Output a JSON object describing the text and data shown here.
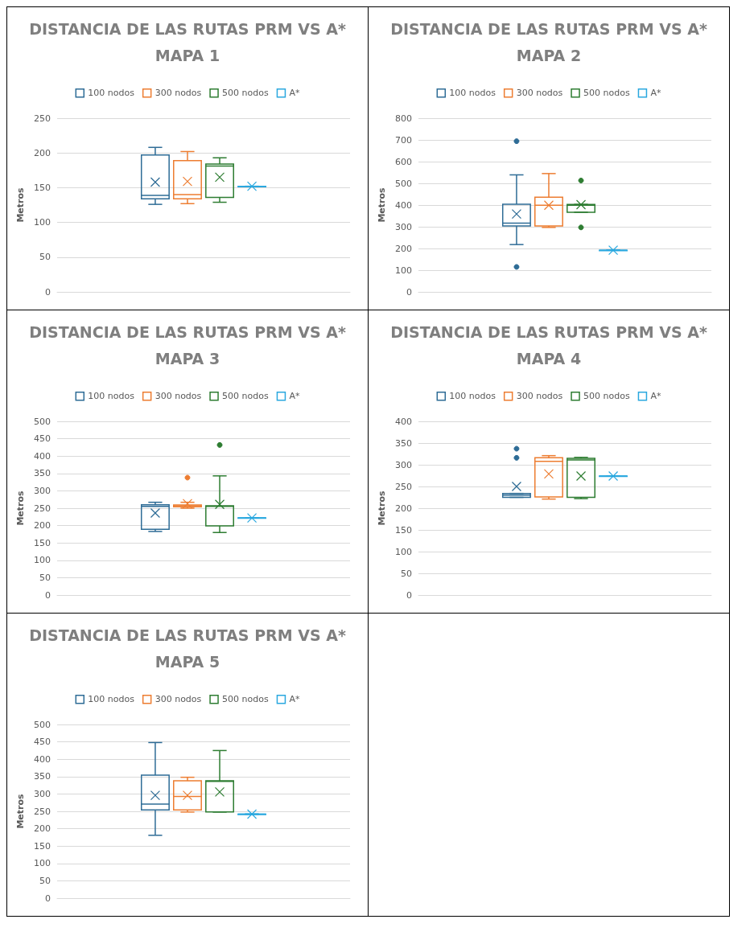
{
  "chart_data": [
    {
      "type": "box",
      "title": "DISTANCIA DE LAS RUTAS PRM VS A*",
      "subtitle": "MAPA 1",
      "ylabel": "Metros",
      "categories": [
        null
      ],
      "ylim": [
        0,
        250
      ],
      "yticks": [
        0,
        50,
        100,
        150,
        200,
        250
      ],
      "grid": "y",
      "legend": "top",
      "series": [
        {
          "name": "100 nodos",
          "color": "#2e6c96",
          "boxes": [
            {
              "low": 126,
              "q1": 134,
              "median": 139,
              "q3": 197,
              "high": 208,
              "mean": 158
            }
          ]
        },
        {
          "name": "300 nodos",
          "color": "#ed7d31",
          "boxes": [
            {
              "low": 127,
              "q1": 134,
              "median": 140,
              "q3": 189,
              "high": 202,
              "mean": 159
            }
          ]
        },
        {
          "name": "500 nodos",
          "color": "#2e7d32",
          "boxes": [
            {
              "low": 129,
              "q1": 136,
              "median": 181,
              "q3": 184,
              "high": 193,
              "mean": 165
            }
          ]
        },
        {
          "name": "A*",
          "color": "#2aa8df",
          "boxes": [
            {
              "low": 152,
              "q1": 152,
              "median": 152,
              "q3": 152,
              "high": 152,
              "mean": 152
            }
          ]
        }
      ]
    },
    {
      "type": "box",
      "title": "DISTANCIA DE LAS RUTAS PRM VS A*",
      "subtitle": "MAPA 2",
      "ylabel": "Metros",
      "categories": [
        null
      ],
      "ylim": [
        0,
        800
      ],
      "yticks": [
        0,
        100,
        200,
        300,
        400,
        500,
        600,
        700,
        800
      ],
      "grid": "y",
      "legend": "top",
      "series": [
        {
          "name": "100 nodos",
          "color": "#2e6c96",
          "boxes": [
            {
              "low": 218,
              "q1": 304,
              "median": 317,
              "q3": 404,
              "high": 539,
              "mean": 359,
              "outliers": [
                694,
                115
              ]
            }
          ]
        },
        {
          "name": "300 nodos",
          "color": "#ed7d31",
          "boxes": [
            {
              "low": 297,
              "q1": 304,
              "median": 399,
              "q3": 436,
              "high": 545,
              "mean": 399
            }
          ]
        },
        {
          "name": "500 nodos",
          "color": "#2e7d32",
          "boxes": [
            {
              "low": 367,
              "q1": 367,
              "median": 399,
              "q3": 403,
              "high": 403,
              "mean": 402,
              "outliers": [
                513,
                297
              ]
            }
          ]
        },
        {
          "name": "A*",
          "color": "#2aa8df",
          "boxes": [
            {
              "low": 192,
              "q1": 192,
              "median": 192,
              "q3": 192,
              "high": 192,
              "mean": 192
            }
          ]
        }
      ]
    },
    {
      "type": "box",
      "title": "DISTANCIA DE LAS RUTAS PRM VS A*",
      "subtitle": "MAPA 3",
      "ylabel": "Metros",
      "categories": [
        null
      ],
      "ylim": [
        0,
        500
      ],
      "yticks": [
        0,
        50,
        100,
        150,
        200,
        250,
        300,
        350,
        400,
        450,
        500
      ],
      "grid": "y",
      "legend": "top",
      "series": [
        {
          "name": "100 nodos",
          "color": "#2e6c96",
          "boxes": [
            {
              "low": 183,
              "q1": 189,
              "median": 255,
              "q3": 260,
              "high": 267,
              "mean": 236
            }
          ]
        },
        {
          "name": "300 nodos",
          "color": "#ed7d31",
          "boxes": [
            {
              "low": 250,
              "q1": 254,
              "median": 257,
              "q3": 259,
              "high": 267,
              "mean": 263,
              "outliers": [
                338
              ]
            }
          ]
        },
        {
          "name": "500 nodos",
          "color": "#2e7d32",
          "boxes": [
            {
              "low": 180,
              "q1": 199,
              "median": 255,
              "q3": 257,
              "high": 343,
              "mean": 261,
              "outliers": [
                432
              ]
            }
          ]
        },
        {
          "name": "A*",
          "color": "#2aa8df",
          "boxes": [
            {
              "low": 222,
              "q1": 222,
              "median": 222,
              "q3": 222,
              "high": 222,
              "mean": 222
            }
          ]
        }
      ]
    },
    {
      "type": "box",
      "title": "DISTANCIA DE LAS RUTAS PRM VS A*",
      "subtitle": "MAPA 4",
      "ylabel": "Metros",
      "categories": [
        null
      ],
      "ylim": [
        0,
        400
      ],
      "yticks": [
        0,
        50,
        100,
        150,
        200,
        250,
        300,
        350,
        400
      ],
      "grid": "y",
      "legend": "top",
      "series": [
        {
          "name": "100 nodos",
          "color": "#2e6c96",
          "boxes": [
            {
              "low": 225,
              "q1": 225,
              "median": 230,
              "q3": 234,
              "high": 234,
              "mean": 250,
              "outliers": [
                337,
                316
              ]
            }
          ]
        },
        {
          "name": "300 nodos",
          "color": "#ed7d31",
          "boxes": [
            {
              "low": 221,
              "q1": 226,
              "median": 308,
              "q3": 316,
              "high": 321,
              "mean": 279
            }
          ]
        },
        {
          "name": "500 nodos",
          "color": "#2e7d32",
          "boxes": [
            {
              "low": 222,
              "q1": 225,
              "median": 311,
              "q3": 315,
              "high": 317,
              "mean": 274
            }
          ]
        },
        {
          "name": "A*",
          "color": "#2aa8df",
          "boxes": [
            {
              "low": 274,
              "q1": 274,
              "median": 274,
              "q3": 274,
              "high": 274,
              "mean": 274
            }
          ]
        }
      ]
    },
    {
      "type": "box",
      "title": "DISTANCIA DE LAS RUTAS PRM VS A*",
      "subtitle": "MAPA 5",
      "ylabel": "Metros",
      "categories": [
        null
      ],
      "ylim": [
        0,
        500
      ],
      "yticks": [
        0,
        50,
        100,
        150,
        200,
        250,
        300,
        350,
        400,
        450,
        500
      ],
      "grid": "y",
      "legend": "top",
      "series": [
        {
          "name": "100 nodos",
          "color": "#2e6c96",
          "boxes": [
            {
              "low": 181,
              "q1": 254,
              "median": 271,
              "q3": 354,
              "high": 448,
              "mean": 296
            }
          ]
        },
        {
          "name": "300 nodos",
          "color": "#ed7d31",
          "boxes": [
            {
              "low": 248,
              "q1": 254,
              "median": 293,
              "q3": 338,
              "high": 348,
              "mean": 296
            }
          ]
        },
        {
          "name": "500 nodos",
          "color": "#2e7d32",
          "boxes": [
            {
              "low": 248,
              "q1": 248,
              "median": 336,
              "q3": 338,
              "high": 425,
              "mean": 306
            }
          ]
        },
        {
          "name": "A*",
          "color": "#2aa8df",
          "boxes": [
            {
              "low": 242,
              "q1": 242,
              "median": 242,
              "q3": 242,
              "high": 242,
              "mean": 242
            }
          ]
        }
      ]
    }
  ]
}
